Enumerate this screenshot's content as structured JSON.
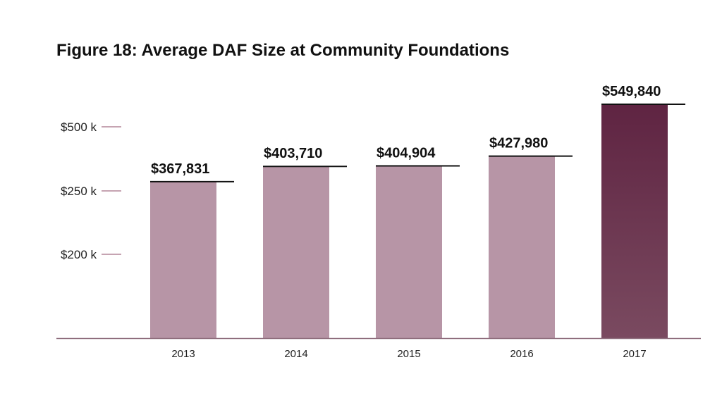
{
  "colors": {
    "bar": "#b795a6",
    "bar_highlight_top": "#5f2442",
    "bar_highlight_bottom": "#7a4a60",
    "axis": "#8c6a7a",
    "tick": "#8c4a66",
    "label_line": "#111111"
  },
  "chart_data": {
    "type": "bar",
    "title": "Figure 18: Average DAF Size at Community Foundations",
    "xlabel": "",
    "ylabel": "",
    "categories": [
      "2013",
      "2014",
      "2015",
      "2016",
      "2017"
    ],
    "values": [
      367831,
      403710,
      404904,
      427980,
      549840
    ],
    "data_labels": [
      "$367,831",
      "$403,710",
      "$404,904",
      "$427,980",
      "$549,840"
    ],
    "highlight_index": 4,
    "ytick_labels": [
      "$500 k",
      "$250 k",
      "$200 k"
    ],
    "grid": false,
    "legend": "none"
  }
}
